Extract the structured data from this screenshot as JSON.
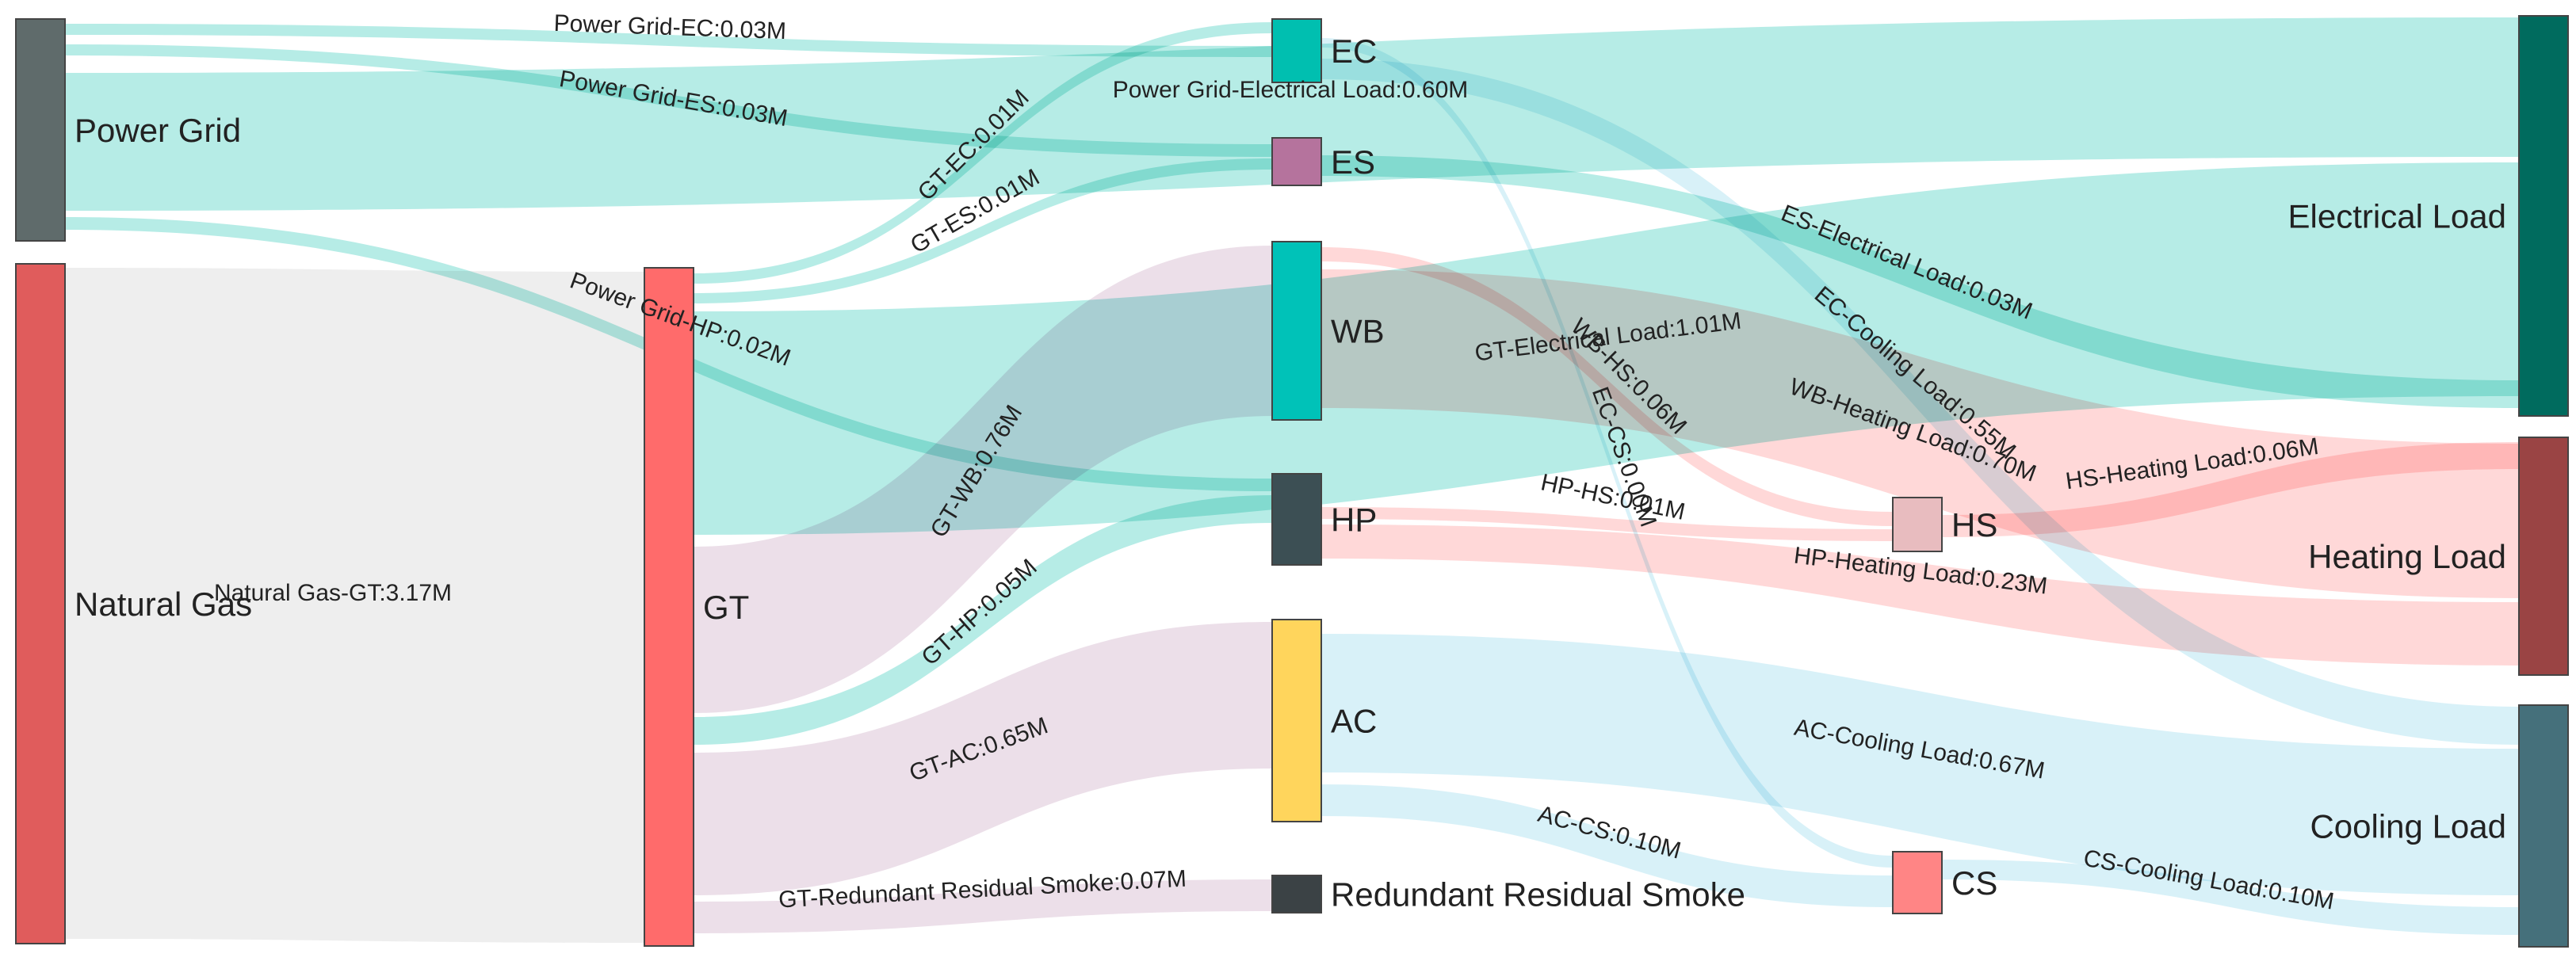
{
  "chart_data": {
    "type": "sankey",
    "title": "",
    "units": "M",
    "nodes": [
      {
        "id": "power_grid",
        "label": "Power Grid",
        "color": "#5f6b6b"
      },
      {
        "id": "natural_gas",
        "label": "Natural Gas",
        "color": "#e05c5c"
      },
      {
        "id": "gt",
        "label": "GT",
        "color": "#ff6b6b"
      },
      {
        "id": "ec",
        "label": "EC",
        "color": "#00bfb0"
      },
      {
        "id": "es",
        "label": "ES",
        "color": "#b5739d"
      },
      {
        "id": "wb",
        "label": "WB",
        "color": "#00c2b8"
      },
      {
        "id": "hp",
        "label": "HP",
        "color": "#3c4f54"
      },
      {
        "id": "ac",
        "label": "AC",
        "color": "#ffd55c"
      },
      {
        "id": "rrs",
        "label": "Redundant Residual Smoke",
        "color": "#3b4245"
      },
      {
        "id": "hs",
        "label": "HS",
        "color": "#e8bcbf"
      },
      {
        "id": "cs",
        "label": "CS",
        "color": "#ff8585"
      },
      {
        "id": "el",
        "label": "Electrical Load",
        "color": "#006b5e"
      },
      {
        "id": "hl",
        "label": "Heating Load",
        "color": "#9a4444"
      },
      {
        "id": "cl",
        "label": "Cooling Load",
        "color": "#45707b"
      }
    ],
    "links": [
      {
        "source": "power_grid",
        "target": "ec",
        "value": 0.03,
        "label": "Power Grid-EC:0.03M",
        "color": "#2ec9b8"
      },
      {
        "source": "power_grid",
        "target": "es",
        "value": 0.03,
        "label": "Power Grid-ES:0.03M",
        "color": "#2ec9b8"
      },
      {
        "source": "power_grid",
        "target": "el",
        "value": 0.6,
        "label": "Power Grid-Electrical Load:0.60M",
        "color": "#2ec9b8"
      },
      {
        "source": "power_grid",
        "target": "hp",
        "value": 0.02,
        "label": "Power Grid-HP:0.02M",
        "color": "#2ec9b8"
      },
      {
        "source": "natural_gas",
        "target": "gt",
        "value": 3.17,
        "label": "Natural Gas-GT:3.17M",
        "color": "#cfcfcf"
      },
      {
        "source": "gt",
        "target": "ec",
        "value": 0.01,
        "label": "GT-EC:0.01M",
        "color": "#2ec9b8"
      },
      {
        "source": "gt",
        "target": "es",
        "value": 0.01,
        "label": "GT-ES:0.01M",
        "color": "#2ec9b8"
      },
      {
        "source": "gt",
        "target": "el",
        "value": 1.01,
        "label": "GT-Electrical Load:1.01M",
        "color": "#2ec9b8"
      },
      {
        "source": "gt",
        "target": "wb",
        "value": 0.76,
        "label": "GT-WB:0.76M",
        "color": "#c9a3c0"
      },
      {
        "source": "gt",
        "target": "hp",
        "value": 0.05,
        "label": "GT-HP:0.05M",
        "color": "#2ec9b8"
      },
      {
        "source": "gt",
        "target": "ac",
        "value": 0.65,
        "label": "GT-AC:0.65M",
        "color": "#c9a3c0"
      },
      {
        "source": "gt",
        "target": "rrs",
        "value": 0.07,
        "label": "GT-Redundant Residual Smoke:0.07M",
        "color": "#c9a3c0"
      },
      {
        "source": "ec",
        "target": "cl",
        "value": 0.55,
        "label": "EC-Cooling Load:0.55M",
        "color": "#8fd6ec"
      },
      {
        "source": "ec",
        "target": "cs",
        "value": 0.0,
        "label": "EC-CS:0.00M",
        "color": "#8fd6ec"
      },
      {
        "source": "es",
        "target": "el",
        "value": 0.03,
        "label": "ES-Electrical Load:0.03M",
        "color": "#2ec9b8"
      },
      {
        "source": "wb",
        "target": "hs",
        "value": 0.06,
        "label": "WB-HS:0.06M",
        "color": "#ff8f8f"
      },
      {
        "source": "wb",
        "target": "hl",
        "value": 0.7,
        "label": "WB-Heating Load:0.70M",
        "color": "#ff8f8f"
      },
      {
        "source": "hp",
        "target": "hs",
        "value": 0.01,
        "label": "HP-HS:0.01M",
        "color": "#ff8f8f"
      },
      {
        "source": "hp",
        "target": "hl",
        "value": 0.23,
        "label": "HP-Heating Load:0.23M",
        "color": "#ff8f8f"
      },
      {
        "source": "ac",
        "target": "cl",
        "value": 0.67,
        "label": "AC-Cooling Load:0.67M",
        "color": "#8fd6ec"
      },
      {
        "source": "ac",
        "target": "cs",
        "value": 0.1,
        "label": "AC-CS:0.10M",
        "color": "#8fd6ec"
      },
      {
        "source": "hs",
        "target": "hl",
        "value": 0.06,
        "label": "HS-Heating Load:0.06M",
        "color": "#ff8f8f"
      },
      {
        "source": "cs",
        "target": "cl",
        "value": 0.1,
        "label": "CS-Cooling Load:0.10M",
        "color": "#8fd6ec"
      }
    ]
  }
}
